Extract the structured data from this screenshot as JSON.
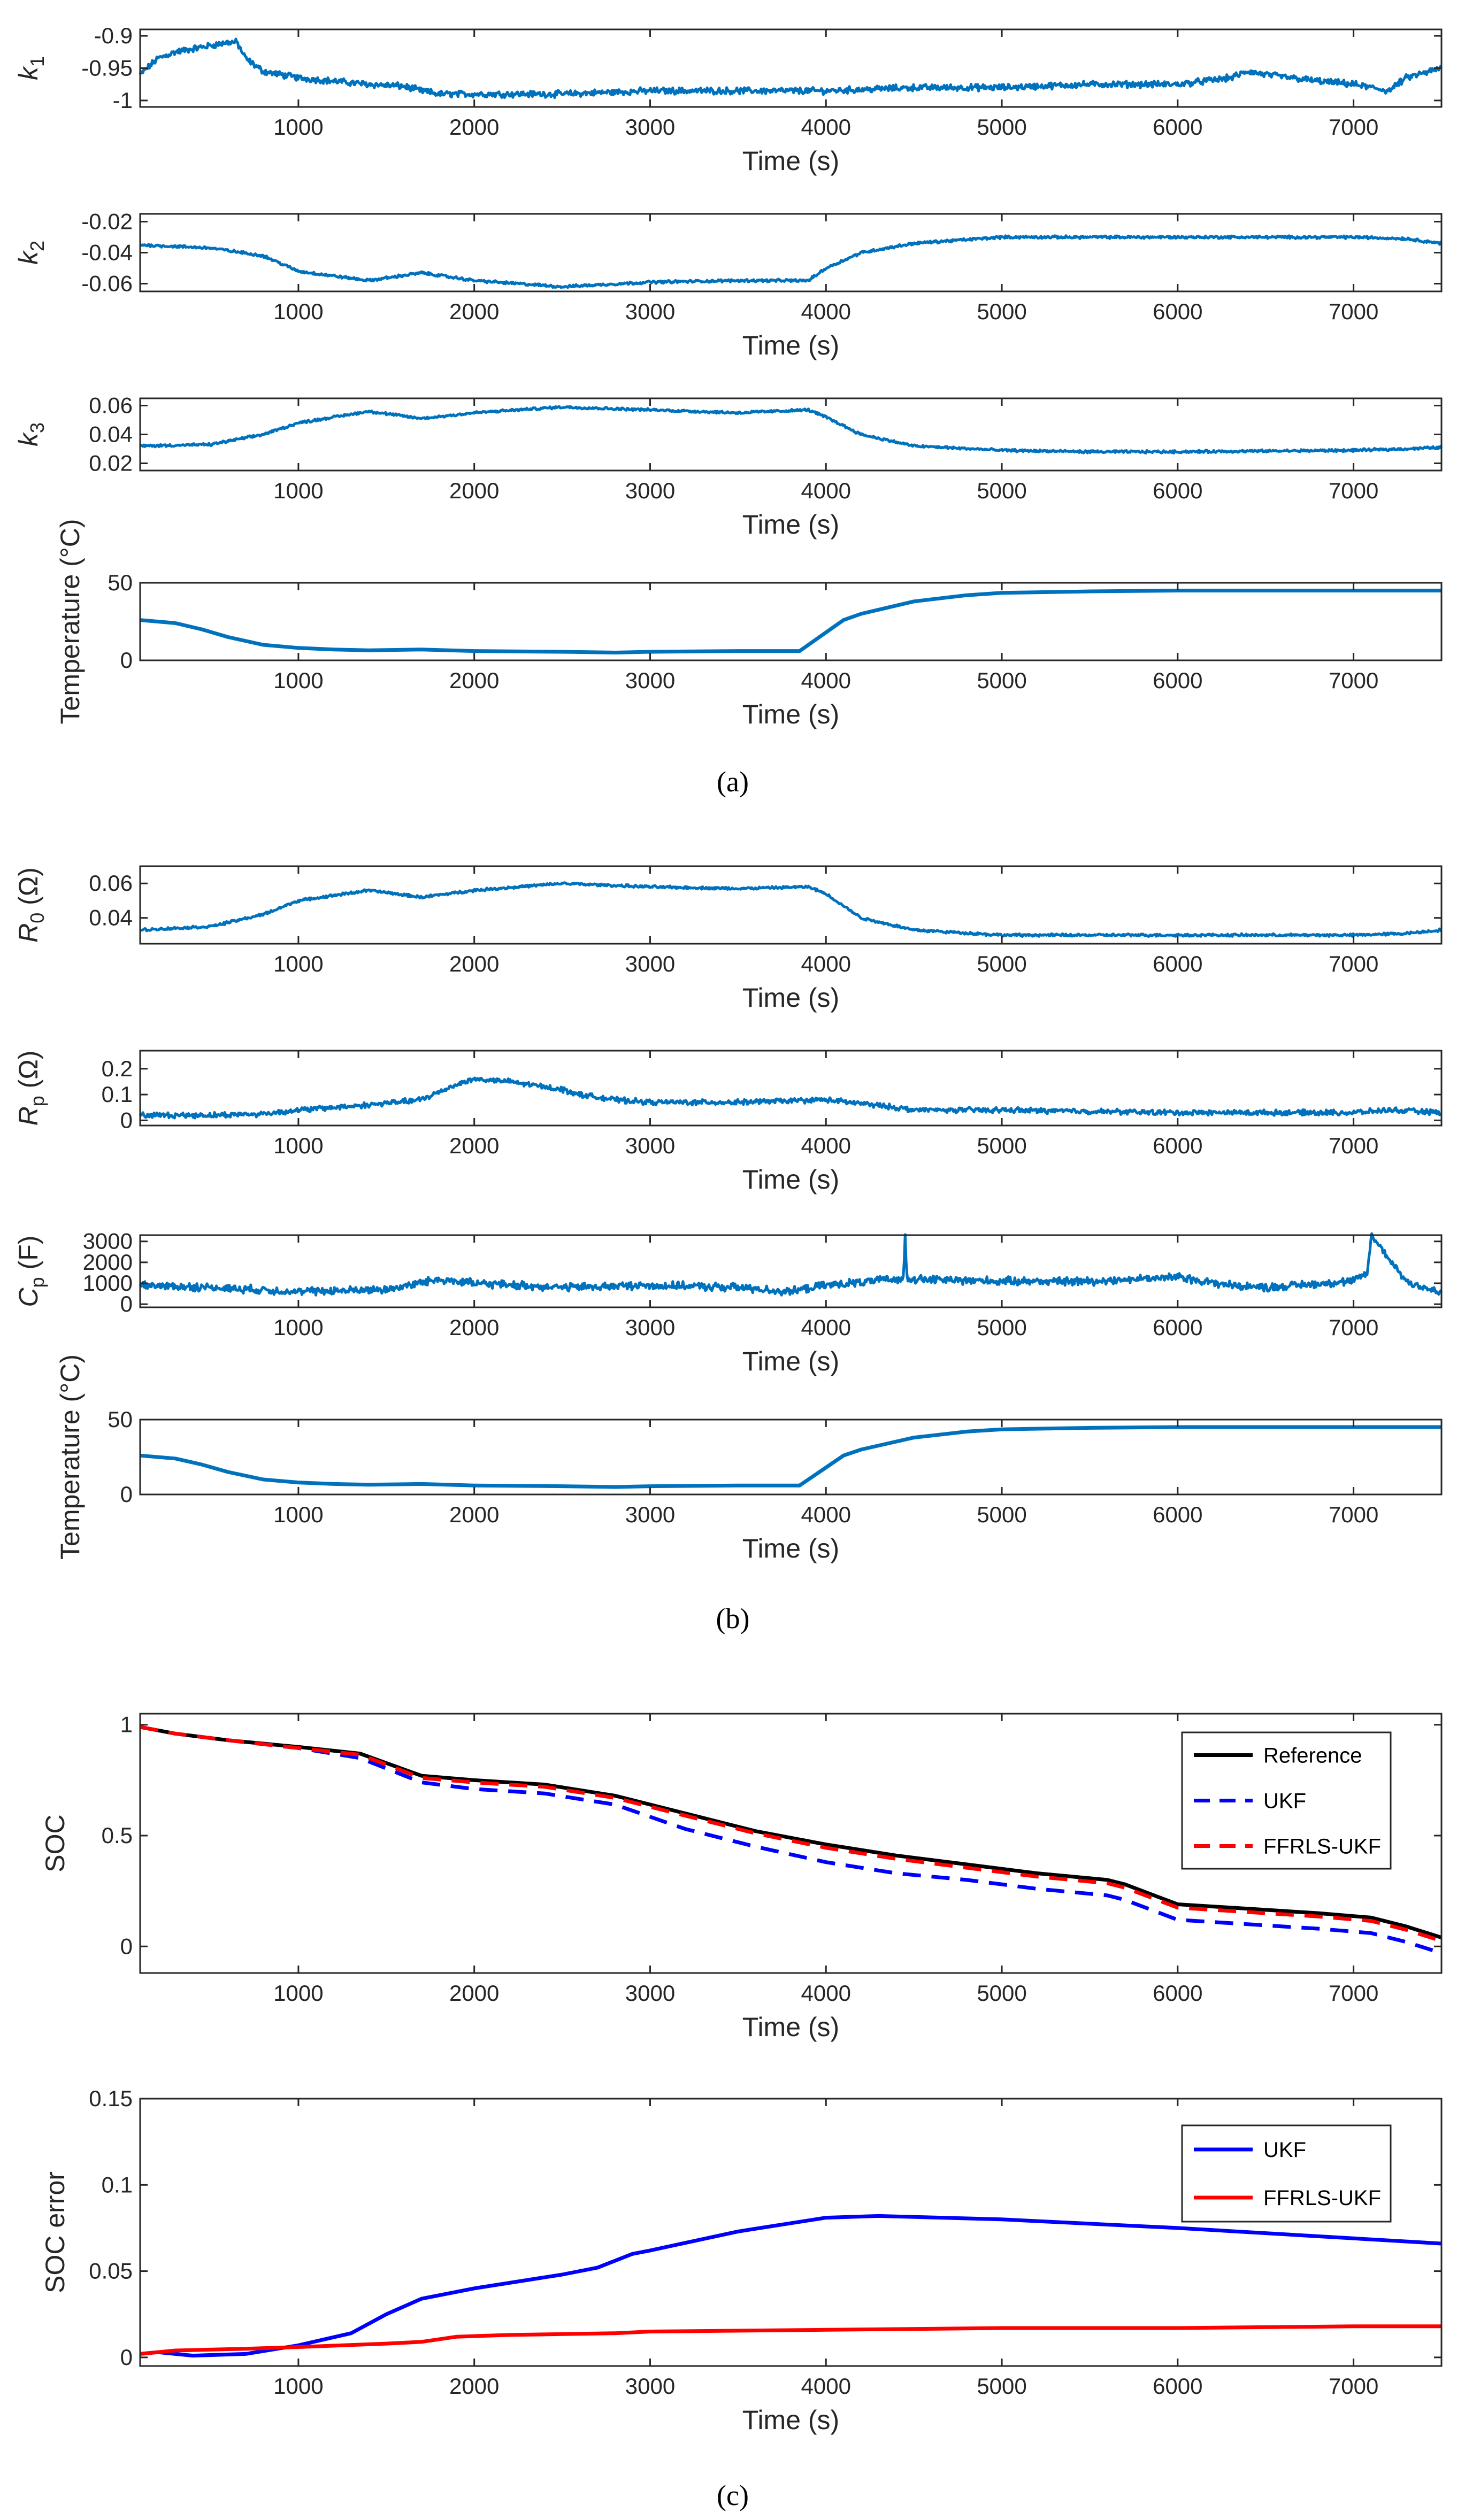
{
  "panel_labels": [
    "(a)",
    "(b)",
    "(c)"
  ],
  "colors": {
    "blue": "#0072BD",
    "black": "#000000",
    "dblue": "#0000FF",
    "red": "#FF0000",
    "axis": "#262626"
  },
  "chart_data": [
    {
      "type": "line",
      "id": "k1",
      "ylabel": "k",
      "ylabel_sub": "1",
      "xlabel": "Time (s)",
      "xlim": [
        100,
        7500
      ],
      "ylim": [
        -1.01,
        -0.89
      ],
      "xticks": [
        1000,
        2000,
        3000,
        4000,
        5000,
        6000,
        7000
      ],
      "xtick_labels": [
        "1000",
        "2000",
        "3000",
        "4000",
        "5000",
        "6000",
        "7000"
      ],
      "yticks": [
        -1,
        -0.95,
        -0.9
      ],
      "ytick_labels": [
        "-1",
        "-0.95",
        "-0.9"
      ],
      "series": [
        {
          "name": "k1",
          "color": "#0072BD",
          "noise": 0.004,
          "x": [
            100,
            200,
            300,
            400,
            500,
            600,
            650,
            700,
            800,
            900,
            1000,
            1200,
            1400,
            1600,
            1700,
            1800,
            2000,
            2500,
            3000,
            3500,
            4000,
            4500,
            5000,
            5500,
            6000,
            6300,
            6400,
            6500,
            6800,
            7000,
            7200,
            7300,
            7500
          ],
          "y": [
            -0.96,
            -0.935,
            -0.925,
            -0.92,
            -0.915,
            -0.91,
            -0.91,
            -0.935,
            -0.955,
            -0.96,
            -0.965,
            -0.97,
            -0.975,
            -0.978,
            -0.985,
            -0.99,
            -0.99,
            -0.99,
            -0.985,
            -0.985,
            -0.985,
            -0.98,
            -0.98,
            -0.975,
            -0.975,
            -0.965,
            -0.955,
            -0.96,
            -0.97,
            -0.975,
            -0.985,
            -0.965,
            -0.95
          ]
        }
      ]
    },
    {
      "type": "line",
      "id": "k2",
      "ylabel": "k",
      "ylabel_sub": "2",
      "xlabel": "Time (s)",
      "xlim": [
        100,
        7500
      ],
      "ylim": [
        -0.065,
        -0.015
      ],
      "xticks": [
        1000,
        2000,
        3000,
        4000,
        5000,
        6000,
        7000
      ],
      "xtick_labels": [
        "1000",
        "2000",
        "3000",
        "4000",
        "5000",
        "6000",
        "7000"
      ],
      "yticks": [
        -0.06,
        -0.04,
        -0.02
      ],
      "ytick_labels": [
        "-0.06",
        "-0.04",
        "-0.02"
      ],
      "series": [
        {
          "name": "k2",
          "color": "#0072BD",
          "noise": 0.0007,
          "x": [
            100,
            500,
            800,
            1000,
            1400,
            1700,
            2000,
            2500,
            3000,
            3500,
            3900,
            4000,
            4200,
            4500,
            5000,
            5500,
            6000,
            7000,
            7300,
            7500
          ],
          "y": [
            -0.035,
            -0.037,
            -0.042,
            -0.052,
            -0.058,
            -0.053,
            -0.058,
            -0.062,
            -0.059,
            -0.058,
            -0.058,
            -0.05,
            -0.04,
            -0.034,
            -0.03,
            -0.03,
            -0.03,
            -0.03,
            -0.031,
            -0.034
          ]
        }
      ]
    },
    {
      "type": "line",
      "id": "k3",
      "ylabel": "k",
      "ylabel_sub": "3",
      "xlabel": "Time (s)",
      "xlim": [
        100,
        7500
      ],
      "ylim": [
        0.015,
        0.065
      ],
      "xticks": [
        1000,
        2000,
        3000,
        4000,
        5000,
        6000,
        7000
      ],
      "xtick_labels": [
        "1000",
        "2000",
        "3000",
        "4000",
        "5000",
        "6000",
        "7000"
      ],
      "yticks": [
        0.02,
        0.04,
        0.06
      ],
      "ytick_labels": [
        "0.02",
        "0.04",
        "0.06"
      ],
      "series": [
        {
          "name": "k3",
          "color": "#0072BD",
          "noise": 0.0007,
          "x": [
            100,
            500,
            800,
            1000,
            1400,
            1700,
            2000,
            2500,
            3000,
            3500,
            3900,
            4000,
            4200,
            4500,
            5000,
            5500,
            6000,
            7000,
            7300,
            7500
          ],
          "y": [
            0.032,
            0.033,
            0.04,
            0.048,
            0.056,
            0.051,
            0.055,
            0.059,
            0.057,
            0.055,
            0.057,
            0.052,
            0.04,
            0.032,
            0.029,
            0.028,
            0.028,
            0.029,
            0.03,
            0.031
          ]
        }
      ]
    },
    {
      "type": "line",
      "id": "tempA",
      "ylabel": "Temperature (°C)",
      "xlabel": "Time (s)",
      "xlim": [
        100,
        7500
      ],
      "ylim": [
        0,
        50
      ],
      "xticks": [
        1000,
        2000,
        3000,
        4000,
        5000,
        6000,
        7000
      ],
      "xtick_labels": [
        "1000",
        "2000",
        "3000",
        "4000",
        "5000",
        "6000",
        "7000"
      ],
      "yticks": [
        0,
        50
      ],
      "ytick_labels": [
        "0",
        "50"
      ],
      "series": [
        {
          "name": "Temperature",
          "color": "#0072BD",
          "noise": 0,
          "x": [
            100,
            300,
            450,
            600,
            800,
            1000,
            1200,
            1400,
            1700,
            2000,
            2500,
            2800,
            3000,
            3500,
            3850,
            3950,
            4100,
            4200,
            4500,
            4800,
            5000,
            5500,
            6000,
            7000,
            7500
          ],
          "y": [
            26,
            24,
            20,
            15,
            10,
            8,
            7,
            6.5,
            7,
            6,
            5.5,
            5,
            5.5,
            6,
            6,
            14,
            26,
            30,
            38,
            42,
            43.5,
            44.5,
            45,
            45,
            45
          ]
        }
      ]
    },
    {
      "type": "line",
      "id": "R0",
      "ylabel": "R",
      "ylabel_sub": "0",
      "ylabel_unit": " (Ω)",
      "xlabel": "Time (s)",
      "xlim": [
        100,
        7500
      ],
      "ylim": [
        0.025,
        0.07
      ],
      "xticks": [
        1000,
        2000,
        3000,
        4000,
        5000,
        6000,
        7000
      ],
      "xtick_labels": [
        "1000",
        "2000",
        "3000",
        "4000",
        "5000",
        "6000",
        "7000"
      ],
      "yticks": [
        0.04,
        0.06
      ],
      "ytick_labels": [
        "0.04",
        "0.06"
      ],
      "series": [
        {
          "name": "R0",
          "color": "#0072BD",
          "noise": 0.0006,
          "x": [
            100,
            500,
            800,
            1000,
            1400,
            1700,
            2000,
            2500,
            3000,
            3500,
            3900,
            4000,
            4200,
            4500,
            5000,
            5500,
            6000,
            7000,
            7300,
            7500
          ],
          "y": [
            0.033,
            0.035,
            0.042,
            0.05,
            0.056,
            0.052,
            0.056,
            0.06,
            0.058,
            0.057,
            0.058,
            0.054,
            0.04,
            0.033,
            0.03,
            0.03,
            0.03,
            0.03,
            0.031,
            0.033
          ]
        }
      ]
    },
    {
      "type": "line",
      "id": "Rp",
      "ylabel": "R",
      "ylabel_sub": "p",
      "ylabel_unit": " (Ω)",
      "xlabel": "Time (s)",
      "xlim": [
        100,
        7500
      ],
      "ylim": [
        -0.02,
        0.27
      ],
      "xticks": [
        1000,
        2000,
        3000,
        4000,
        5000,
        6000,
        7000
      ],
      "xtick_labels": [
        "1000",
        "2000",
        "3000",
        "4000",
        "5000",
        "6000",
        "7000"
      ],
      "yticks": [
        0,
        0.1,
        0.2
      ],
      "ytick_labels": [
        "0",
        "0.1",
        "0.2"
      ],
      "series": [
        {
          "name": "Rp",
          "color": "#0072BD",
          "noise": 0.008,
          "x": [
            100,
            500,
            800,
            1000,
            1400,
            1700,
            1900,
            2000,
            2200,
            2400,
            2500,
            2600,
            2800,
            3000,
            3500,
            4000,
            4400,
            4500,
            5000,
            6000,
            7000,
            7200,
            7500
          ],
          "y": [
            0.02,
            0.02,
            0.025,
            0.04,
            0.06,
            0.08,
            0.14,
            0.16,
            0.15,
            0.13,
            0.12,
            0.1,
            0.08,
            0.07,
            0.07,
            0.08,
            0.05,
            0.04,
            0.04,
            0.03,
            0.03,
            0.04,
            0.03
          ]
        }
      ]
    },
    {
      "type": "line",
      "id": "Cp",
      "ylabel": "C",
      "ylabel_sub": "p",
      "ylabel_unit": " (F)",
      "xlabel": "Time (s)",
      "xlim": [
        100,
        7500
      ],
      "ylim": [
        -150,
        3300
      ],
      "xticks": [
        1000,
        2000,
        3000,
        4000,
        5000,
        6000,
        7000
      ],
      "xtick_labels": [
        "1000",
        "2000",
        "3000",
        "4000",
        "5000",
        "6000",
        "7000"
      ],
      "yticks": [
        0,
        1000,
        2000,
        3000
      ],
      "ytick_labels": [
        "0",
        "1000",
        "2000",
        "3000"
      ],
      "series": [
        {
          "name": "Cp",
          "color": "#0072BD",
          "noise": 150,
          "x": [
            100,
            500,
            1000,
            1500,
            1800,
            2000,
            2500,
            3000,
            3500,
            3800,
            4000,
            4400,
            4440,
            4450,
            4460,
            4500,
            5000,
            5500,
            6000,
            6300,
            6500,
            7000,
            7080,
            7100,
            7200,
            7300,
            7500
          ],
          "y": [
            900,
            800,
            600,
            700,
            1200,
            1000,
            800,
            900,
            800,
            600,
            900,
            1200,
            1200,
            3300,
            1300,
            1200,
            1100,
            1100,
            1300,
            900,
            800,
            1100,
            1500,
            3300,
            2200,
            1100,
            500
          ]
        }
      ]
    },
    {
      "type": "line",
      "id": "tempB",
      "ylabel": "Temperature (°C)",
      "xlabel": "Time (s)",
      "xlim": [
        100,
        7500
      ],
      "ylim": [
        0,
        50
      ],
      "xticks": [
        1000,
        2000,
        3000,
        4000,
        5000,
        6000,
        7000
      ],
      "xtick_labels": [
        "1000",
        "2000",
        "3000",
        "4000",
        "5000",
        "6000",
        "7000"
      ],
      "yticks": [
        0,
        50
      ],
      "ytick_labels": [
        "0",
        "50"
      ],
      "series": [
        {
          "name": "Temperature",
          "color": "#0072BD",
          "noise": 0,
          "x": [
            100,
            300,
            450,
            600,
            800,
            1000,
            1200,
            1400,
            1700,
            2000,
            2500,
            2800,
            3000,
            3500,
            3850,
            3950,
            4100,
            4200,
            4500,
            4800,
            5000,
            5500,
            6000,
            7000,
            7500
          ],
          "y": [
            26,
            24,
            20,
            15,
            10,
            8,
            7,
            6.5,
            7,
            6,
            5.5,
            5,
            5.5,
            6,
            6,
            14,
            26,
            30,
            38,
            42,
            43.5,
            44.5,
            45,
            45,
            45
          ]
        }
      ]
    },
    {
      "type": "line",
      "id": "soc",
      "ylabel": "SOC",
      "xlabel": "Time (s)",
      "xlim": [
        100,
        7500
      ],
      "ylim": [
        -0.12,
        1.05
      ],
      "xticks": [
        1000,
        2000,
        3000,
        4000,
        5000,
        6000,
        7000
      ],
      "xtick_labels": [
        "1000",
        "2000",
        "3000",
        "4000",
        "5000",
        "6000",
        "7000"
      ],
      "yticks": [
        0,
        0.5,
        1
      ],
      "ytick_labels": [
        "0",
        "0.5",
        "1"
      ],
      "legend": "top-right",
      "series": [
        {
          "name": "Reference",
          "color": "#000000",
          "dash": "",
          "noise": 0,
          "x": [
            100,
            300,
            600,
            1000,
            1350,
            1700,
            2000,
            2400,
            2800,
            3200,
            3600,
            4000,
            4400,
            4800,
            5200,
            5600,
            5700,
            6000,
            6400,
            6800,
            7100,
            7300,
            7500
          ],
          "y": [
            0.99,
            0.96,
            0.93,
            0.9,
            0.87,
            0.77,
            0.75,
            0.73,
            0.68,
            0.6,
            0.52,
            0.46,
            0.41,
            0.37,
            0.33,
            0.3,
            0.28,
            0.19,
            0.17,
            0.15,
            0.13,
            0.09,
            0.04
          ]
        },
        {
          "name": "UKF",
          "color": "#0000FF",
          "dash": "34,20",
          "noise": 0,
          "x": [
            100,
            300,
            600,
            1000,
            1350,
            1700,
            2000,
            2400,
            2800,
            3200,
            3600,
            4000,
            4400,
            4800,
            5200,
            5600,
            5700,
            6000,
            6400,
            6800,
            7100,
            7300,
            7500
          ],
          "y": [
            0.99,
            0.96,
            0.93,
            0.895,
            0.85,
            0.74,
            0.71,
            0.69,
            0.64,
            0.53,
            0.45,
            0.38,
            0.33,
            0.3,
            0.26,
            0.23,
            0.21,
            0.12,
            0.1,
            0.08,
            0.06,
            0.02,
            -0.03
          ]
        },
        {
          "name": "FFRLS-UKF",
          "color": "#FF0000",
          "dash": "34,20",
          "noise": 0,
          "x": [
            100,
            300,
            600,
            1000,
            1350,
            1700,
            2000,
            2400,
            2800,
            3200,
            3600,
            4000,
            4400,
            4800,
            5200,
            5600,
            5700,
            6000,
            6400,
            6800,
            7100,
            7300,
            7500
          ],
          "y": [
            0.99,
            0.96,
            0.93,
            0.895,
            0.865,
            0.76,
            0.74,
            0.72,
            0.67,
            0.59,
            0.51,
            0.445,
            0.395,
            0.355,
            0.315,
            0.285,
            0.265,
            0.175,
            0.155,
            0.135,
            0.115,
            0.075,
            0.025
          ]
        }
      ]
    },
    {
      "type": "line",
      "id": "socerr",
      "ylabel": "SOC error",
      "xlabel": "Time (s)",
      "xlim": [
        100,
        7500
      ],
      "ylim": [
        -0.005,
        0.15
      ],
      "xticks": [
        1000,
        2000,
        3000,
        4000,
        5000,
        6000,
        7000
      ],
      "xtick_labels": [
        "1000",
        "2000",
        "3000",
        "4000",
        "5000",
        "6000",
        "7000"
      ],
      "yticks": [
        0,
        0.05,
        0.1,
        0.15
      ],
      "ytick_labels": [
        "0",
        "0.05",
        "0.1",
        "0.15"
      ],
      "legend": "top-right",
      "series": [
        {
          "name": "UKF",
          "color": "#0000FF",
          "dash": "",
          "noise": 0,
          "x": [
            100,
            200,
            400,
            700,
            1000,
            1300,
            1500,
            1700,
            2000,
            2500,
            2700,
            2900,
            3000,
            3500,
            4000,
            4300,
            5000,
            6000,
            7000,
            7500
          ],
          "y": [
            0.002,
            0.003,
            0.001,
            0.002,
            0.007,
            0.014,
            0.025,
            0.034,
            0.04,
            0.048,
            0.052,
            0.06,
            0.062,
            0.073,
            0.081,
            0.082,
            0.08,
            0.075,
            0.069,
            0.066
          ]
        },
        {
          "name": "FFRLS-UKF",
          "color": "#FF0000",
          "dash": "",
          "noise": 0,
          "x": [
            100,
            300,
            700,
            1000,
            1500,
            1700,
            1900,
            2200,
            2800,
            3000,
            4000,
            5000,
            6000,
            7000,
            7500
          ],
          "y": [
            0.002,
            0.004,
            0.005,
            0.006,
            0.008,
            0.009,
            0.012,
            0.013,
            0.014,
            0.015,
            0.016,
            0.017,
            0.017,
            0.018,
            0.018
          ]
        }
      ]
    }
  ]
}
